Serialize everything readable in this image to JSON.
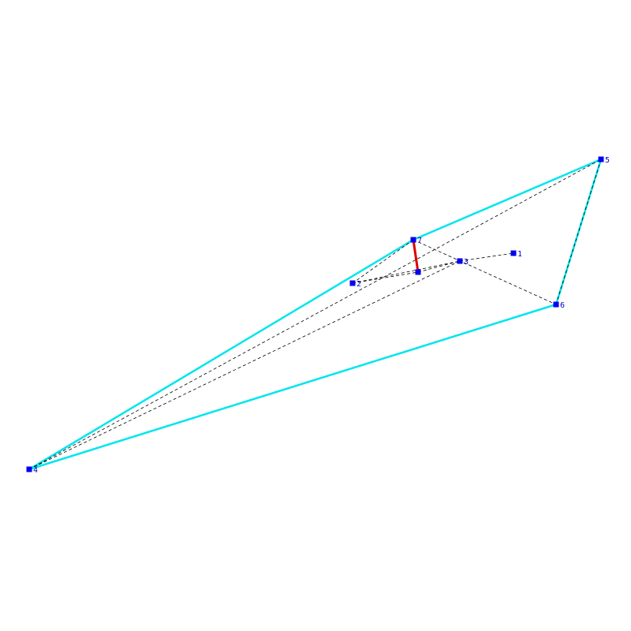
{
  "colors": {
    "background": "#ffffff",
    "hull": "#00e5ee",
    "highlight": "#dd0000",
    "dashed": "#000000",
    "node": "#0000ee",
    "label": "#0000cc"
  },
  "nodes": [
    {
      "id": "1",
      "label": "1"
    },
    {
      "id": "2",
      "label": "2"
    },
    {
      "id": "3",
      "label": "3"
    },
    {
      "id": "4",
      "label": "4"
    },
    {
      "id": "5",
      "label": "5"
    },
    {
      "id": "6",
      "label": "6"
    },
    {
      "id": "7",
      "label": "7"
    },
    {
      "id": "8",
      "label": ""
    }
  ],
  "edges": {
    "hull": [
      [
        "4",
        "7"
      ],
      [
        "7",
        "5"
      ],
      [
        "5",
        "6"
      ],
      [
        "6",
        "4"
      ]
    ],
    "highlight": [
      [
        "7",
        "8"
      ]
    ],
    "dashed": [
      [
        "4",
        "5"
      ],
      [
        "4",
        "3"
      ],
      [
        "7",
        "6"
      ],
      [
        "7",
        "2"
      ],
      [
        "2",
        "3"
      ],
      [
        "2",
        "8"
      ],
      [
        "8",
        "3"
      ],
      [
        "3",
        "1"
      ],
      [
        "5",
        "6"
      ]
    ]
  }
}
